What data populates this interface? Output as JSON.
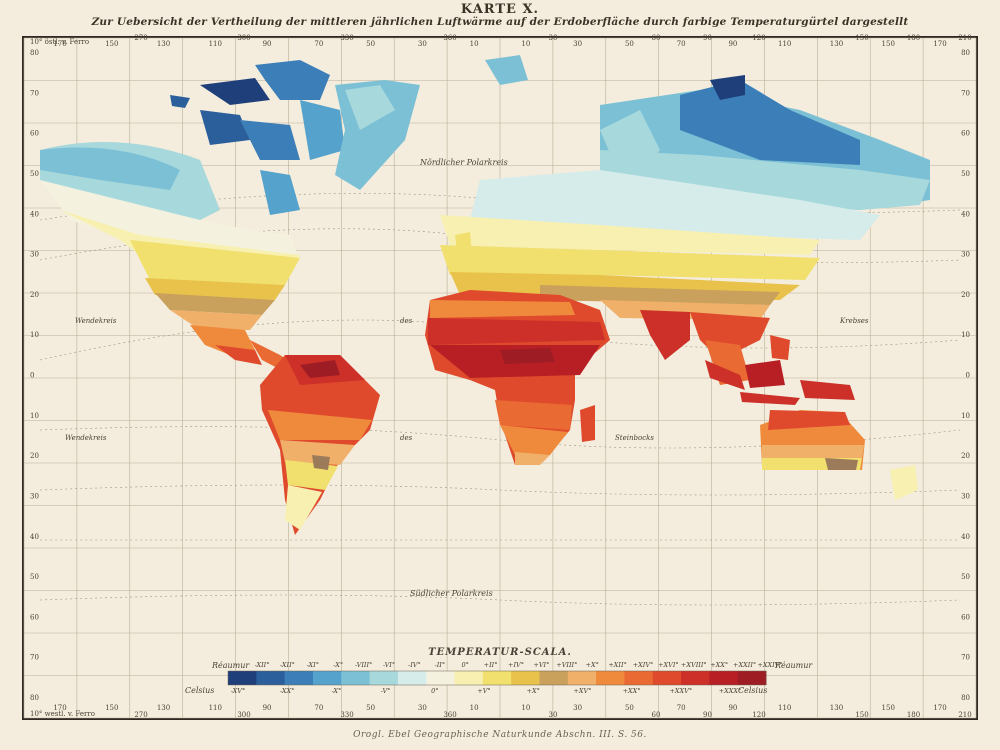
{
  "title": "KARTE X.",
  "subtitle": "Zur Uebersicht der Vertheilung der mittleren jährlichen Luftwärme auf der Erdoberfläche durch farbige Temperaturgürtel dargestellt",
  "footer_credit": "Orogl. Ebel Geographische Naturkunde Abschn. III. S. 56.",
  "map_labels": {
    "north_polar_circle": "Nördlicher Polarkreis",
    "south_polar_circle": "Südlicher Polarkreis",
    "tropic_cancer_left": "Wendekreis",
    "tropic_cancer_mid": "des",
    "tropic_cancer_right": "Krebses",
    "tropic_capricorn_left": "Wendekreis",
    "tropic_capricorn_mid": "des",
    "tropic_capricorn_right": "Steinbocks",
    "prime_left_top": "10° östl. v. Ferro",
    "prime_left_bottom": "10° westl. v. Ferro"
  },
  "longitude_ticks_top": [
    "170",
    "150",
    "130",
    "110",
    "90",
    "70",
    "50",
    "30",
    "10",
    "10",
    "30",
    "50",
    "70",
    "90",
    "110",
    "130",
    "150",
    "170"
  ],
  "longitude_ticks_deg": [
    "",
    "",
    "270",
    "",
    "300",
    "",
    "330",
    "",
    "360",
    "",
    "30",
    "",
    "60",
    "90",
    "120",
    "",
    "150",
    "180",
    "210"
  ],
  "latitude_ticks_left": [
    "80",
    "70",
    "60",
    "50",
    "40",
    "30",
    "20",
    "10",
    "0",
    "10",
    "20",
    "30",
    "40",
    "50",
    "60",
    "70",
    "80"
  ],
  "scale": {
    "title": "TEMPERATUR-SCALA.",
    "reaumur_label": "Réaumur",
    "celsius_label": "Celsius",
    "reaumur_values": [
      "-XII°",
      "-XII°",
      "-XI°",
      "-X°",
      "-VIII°",
      "-VI°",
      "-IV°",
      "-II°",
      "0°",
      "+II°",
      "+IV°",
      "+VI°",
      "+VIII°",
      "+X°",
      "+XII°",
      "+XIV°",
      "+XVI°",
      "+XVIII°",
      "+XX°",
      "+XXII°",
      "+XXIV°"
    ],
    "celsius_values": [
      "-XV°",
      "-XX°",
      "-X°",
      "-V°",
      "0°",
      "+V°",
      "+X°",
      "+XV°",
      "+XX°",
      "+XXV°",
      "+XXX°"
    ],
    "colors": [
      "#1f3f7a",
      "#2b5f9c",
      "#3c7fb8",
      "#55a2cc",
      "#7cc0d6",
      "#a7d8dc",
      "#d6ecea",
      "#f4f1df",
      "#f7f0b0",
      "#f1e06e",
      "#e8c24a",
      "#c9a05c",
      "#f0b06a",
      "#ef8a3c",
      "#e96a33",
      "#df4a2c",
      "#cc3028",
      "#b81f24",
      "#9e1c24"
    ]
  }
}
